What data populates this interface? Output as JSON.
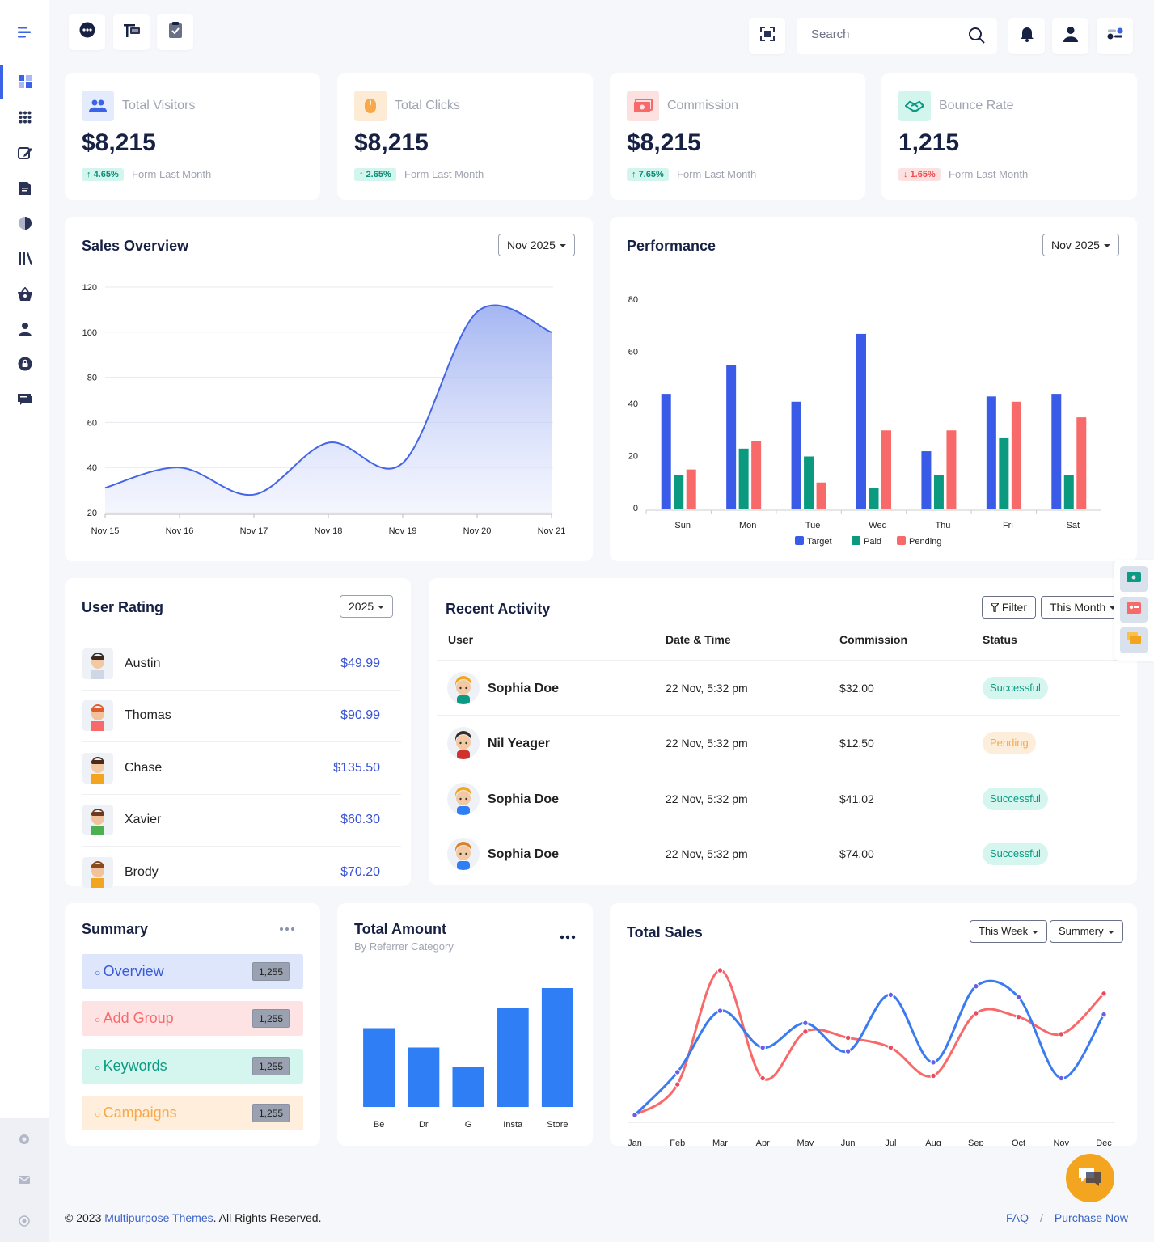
{
  "colors": {
    "primary": "#3a63e8",
    "success": "#0c9a82",
    "danger": "#f86a6a",
    "warning": "#f7a94a"
  },
  "topbar": {
    "left_icons": [
      "chat-bubble-icon",
      "flag-icon",
      "clipboard-check-icon"
    ],
    "right_icons": [
      "fullscreen-icon",
      "bell-icon",
      "user-icon",
      "settings-toggle-icon"
    ],
    "search_placeholder": "Search"
  },
  "sidebar": {
    "icons": [
      "dashboard-icon",
      "apps-icon",
      "edit-icon",
      "document-icon",
      "pie-chart-icon",
      "library-icon",
      "basket-icon",
      "user-icon",
      "lock-icon",
      "chat-icon"
    ],
    "bottom_icons": [
      "settings-icon",
      "mail-icon",
      "power-icon"
    ]
  },
  "stats": [
    {
      "title": "Total Visitors",
      "value": "$8,215",
      "badge": "4.65%",
      "direction": "up",
      "sub": "Form Last Month",
      "icon": "users-icon"
    },
    {
      "title": "Total Clicks",
      "value": "$8,215",
      "badge": "2.65%",
      "direction": "up",
      "sub": "Form Last Month",
      "icon": "mouse-icon"
    },
    {
      "title": "Commission",
      "value": "$8,215",
      "badge": "7.65%",
      "direction": "up",
      "sub": "Form Last Month",
      "icon": "money-icon"
    },
    {
      "title": "Bounce Rate",
      "value": "1,215",
      "badge": "1.65%",
      "direction": "down",
      "sub": "Form Last Month",
      "icon": "handshake-icon"
    }
  ],
  "sales_overview": {
    "title": "Sales Overview",
    "period": "Nov 2025"
  },
  "performance": {
    "title": "Performance",
    "period": "Nov 2025"
  },
  "user_rating": {
    "title": "User Rating",
    "period": "2025",
    "users": [
      {
        "name": "Austin",
        "amount": "$49.99"
      },
      {
        "name": "Thomas",
        "amount": "$90.99"
      },
      {
        "name": "Chase",
        "amount": "$135.50"
      },
      {
        "name": "Xavier",
        "amount": "$60.30"
      },
      {
        "name": "Brody",
        "amount": "$70.20"
      }
    ]
  },
  "recent_activity": {
    "title": "Recent Activity",
    "filter_label": "Filter",
    "period": "This Month",
    "headers": {
      "user": "User",
      "date": "Date & Time",
      "commission": "Commission",
      "status": "Status"
    },
    "rows": [
      {
        "name": "Sophia Doe",
        "date": "22 Nov, 5:32 pm",
        "commission": "$32.00",
        "status": "Successful"
      },
      {
        "name": "Nil Yeager",
        "date": "22 Nov, 5:32 pm",
        "commission": "$12.50",
        "status": "Pending"
      },
      {
        "name": "Sophia Doe",
        "date": "22 Nov, 5:32 pm",
        "commission": "$41.02",
        "status": "Successful"
      },
      {
        "name": "Sophia Doe",
        "date": "22 Nov, 5:32 pm",
        "commission": "$74.00",
        "status": "Successful"
      }
    ]
  },
  "summary": {
    "title": "Summary",
    "items": [
      {
        "label": "Overview",
        "count": "1,255"
      },
      {
        "label": "Add Group",
        "count": "1,255"
      },
      {
        "label": "Keywords",
        "count": "1,255"
      },
      {
        "label": "Campaigns",
        "count": "1,255"
      }
    ]
  },
  "total_amount": {
    "title": "Total Amount",
    "subtitle": "By Referrer Category"
  },
  "total_sales": {
    "title": "Total Sales",
    "period": "This Week",
    "mode": "Summery"
  },
  "footer": {
    "copyright": "© 2023",
    "brand": "Multipurpose Themes",
    "rights": ". All Rights Reserved.",
    "faq": "FAQ",
    "sep": "/",
    "purchase": "Purchase Now"
  },
  "chart_data": [
    {
      "id": "sales_overview",
      "type": "area",
      "x": [
        "Nov 15",
        "Nov 16",
        "Nov 17",
        "Nov 18",
        "Nov 19",
        "Nov 20",
        "Nov 21"
      ],
      "series": [
        {
          "values": [
            31,
            40,
            28,
            51,
            42,
            109,
            100
          ]
        }
      ],
      "ylim": [
        20,
        120
      ],
      "yticks": [
        20,
        40,
        60,
        80,
        100,
        120
      ],
      "grid": true
    },
    {
      "id": "performance",
      "type": "bar",
      "categories": [
        "Sun",
        "Mon",
        "Tue",
        "Wed",
        "Thu",
        "Fri",
        "Sat"
      ],
      "series": [
        {
          "name": "Target",
          "color": "#3a5ae8",
          "values": [
            44,
            55,
            41,
            67,
            22,
            43,
            44
          ]
        },
        {
          "name": "Paid",
          "color": "#0b9a80",
          "values": [
            13,
            23,
            20,
            8,
            13,
            27,
            13
          ]
        },
        {
          "name": "Pending",
          "color": "#f86a6a",
          "values": [
            15,
            26,
            10,
            30,
            30,
            41,
            35
          ]
        }
      ],
      "ylim": [
        0,
        80
      ],
      "yticks": [
        0,
        20,
        40,
        60,
        80
      ],
      "legend": "bottom"
    },
    {
      "id": "total_amount",
      "type": "bar",
      "categories": [
        "Be",
        "Dr",
        "G",
        "Insta",
        "Store"
      ],
      "series": [
        {
          "color": "#2f7ef5",
          "values": [
            65,
            49,
            33,
            82,
            98
          ]
        }
      ],
      "ylim": [
        0,
        100
      ],
      "grid": false
    },
    {
      "id": "total_sales",
      "type": "line",
      "x": [
        "Jan",
        "Feb",
        "Mar",
        "Apr",
        "May",
        "Jun",
        "Jul",
        "Aug",
        "Sep",
        "Oct",
        "Nov",
        "Dec"
      ],
      "series": [
        {
          "color": "#3a7cf0",
          "values": [
            0,
            35,
            85,
            55,
            75,
            52,
            98,
            43,
            105,
            96,
            30,
            82
          ]
        },
        {
          "color": "#f86a6a",
          "values": [
            0,
            25,
            118,
            30,
            68,
            63,
            55,
            32,
            83,
            80,
            66,
            99
          ]
        }
      ],
      "ylim": [
        0,
        120
      ],
      "grid": false
    }
  ]
}
